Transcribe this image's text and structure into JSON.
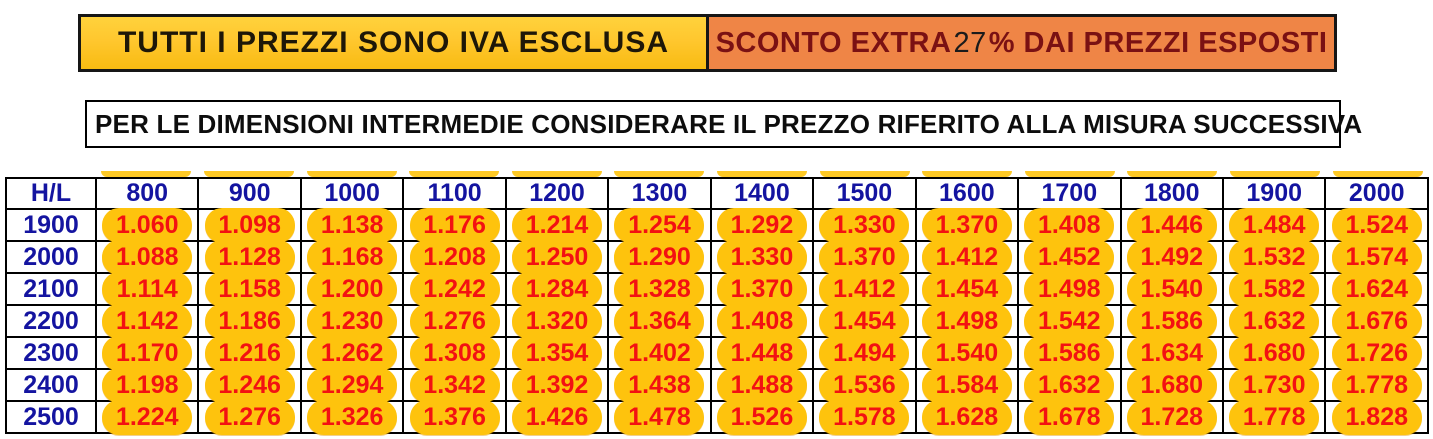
{
  "banners": {
    "iva_notice": "TUTTI I PREZZI SONO IVA ESCLUSA",
    "sconto_prefix": "SCONTO EXTRA ",
    "sconto_value": "27",
    "sconto_suffix": "% DAI PREZZI ESPOSTI",
    "dimension_note": "PER LE DIMENSIONI INTERMEDIE CONSIDERARE IL PREZZO RIFERITO ALLA MISURA SUCCESSIVA"
  },
  "colors": {
    "banner_gold": "#ffc72e",
    "banner_orange": "#ef8546",
    "banner_maroon_text": "#7a1113",
    "header_navy": "#1414a0",
    "price_red": "#f31112",
    "pill_yellow": "#fec30d"
  },
  "price_table": {
    "corner_label": "H/L",
    "column_headers": [
      "800",
      "900",
      "1000",
      "1100",
      "1200",
      "1300",
      "1400",
      "1500",
      "1600",
      "1700",
      "1800",
      "1900",
      "2000"
    ],
    "rows": [
      {
        "label": "1900",
        "values": [
          "1.060",
          "1.098",
          "1.138",
          "1.176",
          "1.214",
          "1.254",
          "1.292",
          "1.330",
          "1.370",
          "1.408",
          "1.446",
          "1.484",
          "1.524"
        ]
      },
      {
        "label": "2000",
        "values": [
          "1.088",
          "1.128",
          "1.168",
          "1.208",
          "1.250",
          "1.290",
          "1.330",
          "1.370",
          "1.412",
          "1.452",
          "1.492",
          "1.532",
          "1.574"
        ]
      },
      {
        "label": "2100",
        "values": [
          "1.114",
          "1.158",
          "1.200",
          "1.242",
          "1.284",
          "1.328",
          "1.370",
          "1.412",
          "1.454",
          "1.498",
          "1.540",
          "1.582",
          "1.624"
        ]
      },
      {
        "label": "2200",
        "values": [
          "1.142",
          "1.186",
          "1.230",
          "1.276",
          "1.320",
          "1.364",
          "1.408",
          "1.454",
          "1.498",
          "1.542",
          "1.586",
          "1.632",
          "1.676"
        ]
      },
      {
        "label": "2300",
        "values": [
          "1.170",
          "1.216",
          "1.262",
          "1.308",
          "1.354",
          "1.402",
          "1.448",
          "1.494",
          "1.540",
          "1.586",
          "1.634",
          "1.680",
          "1.726"
        ]
      },
      {
        "label": "2400",
        "values": [
          "1.198",
          "1.246",
          "1.294",
          "1.342",
          "1.392",
          "1.438",
          "1.488",
          "1.536",
          "1.584",
          "1.632",
          "1.680",
          "1.730",
          "1.778"
        ]
      },
      {
        "label": "2500",
        "values": [
          "1.224",
          "1.276",
          "1.326",
          "1.376",
          "1.426",
          "1.478",
          "1.526",
          "1.578",
          "1.628",
          "1.678",
          "1.728",
          "1.778",
          "1.828"
        ]
      }
    ]
  }
}
